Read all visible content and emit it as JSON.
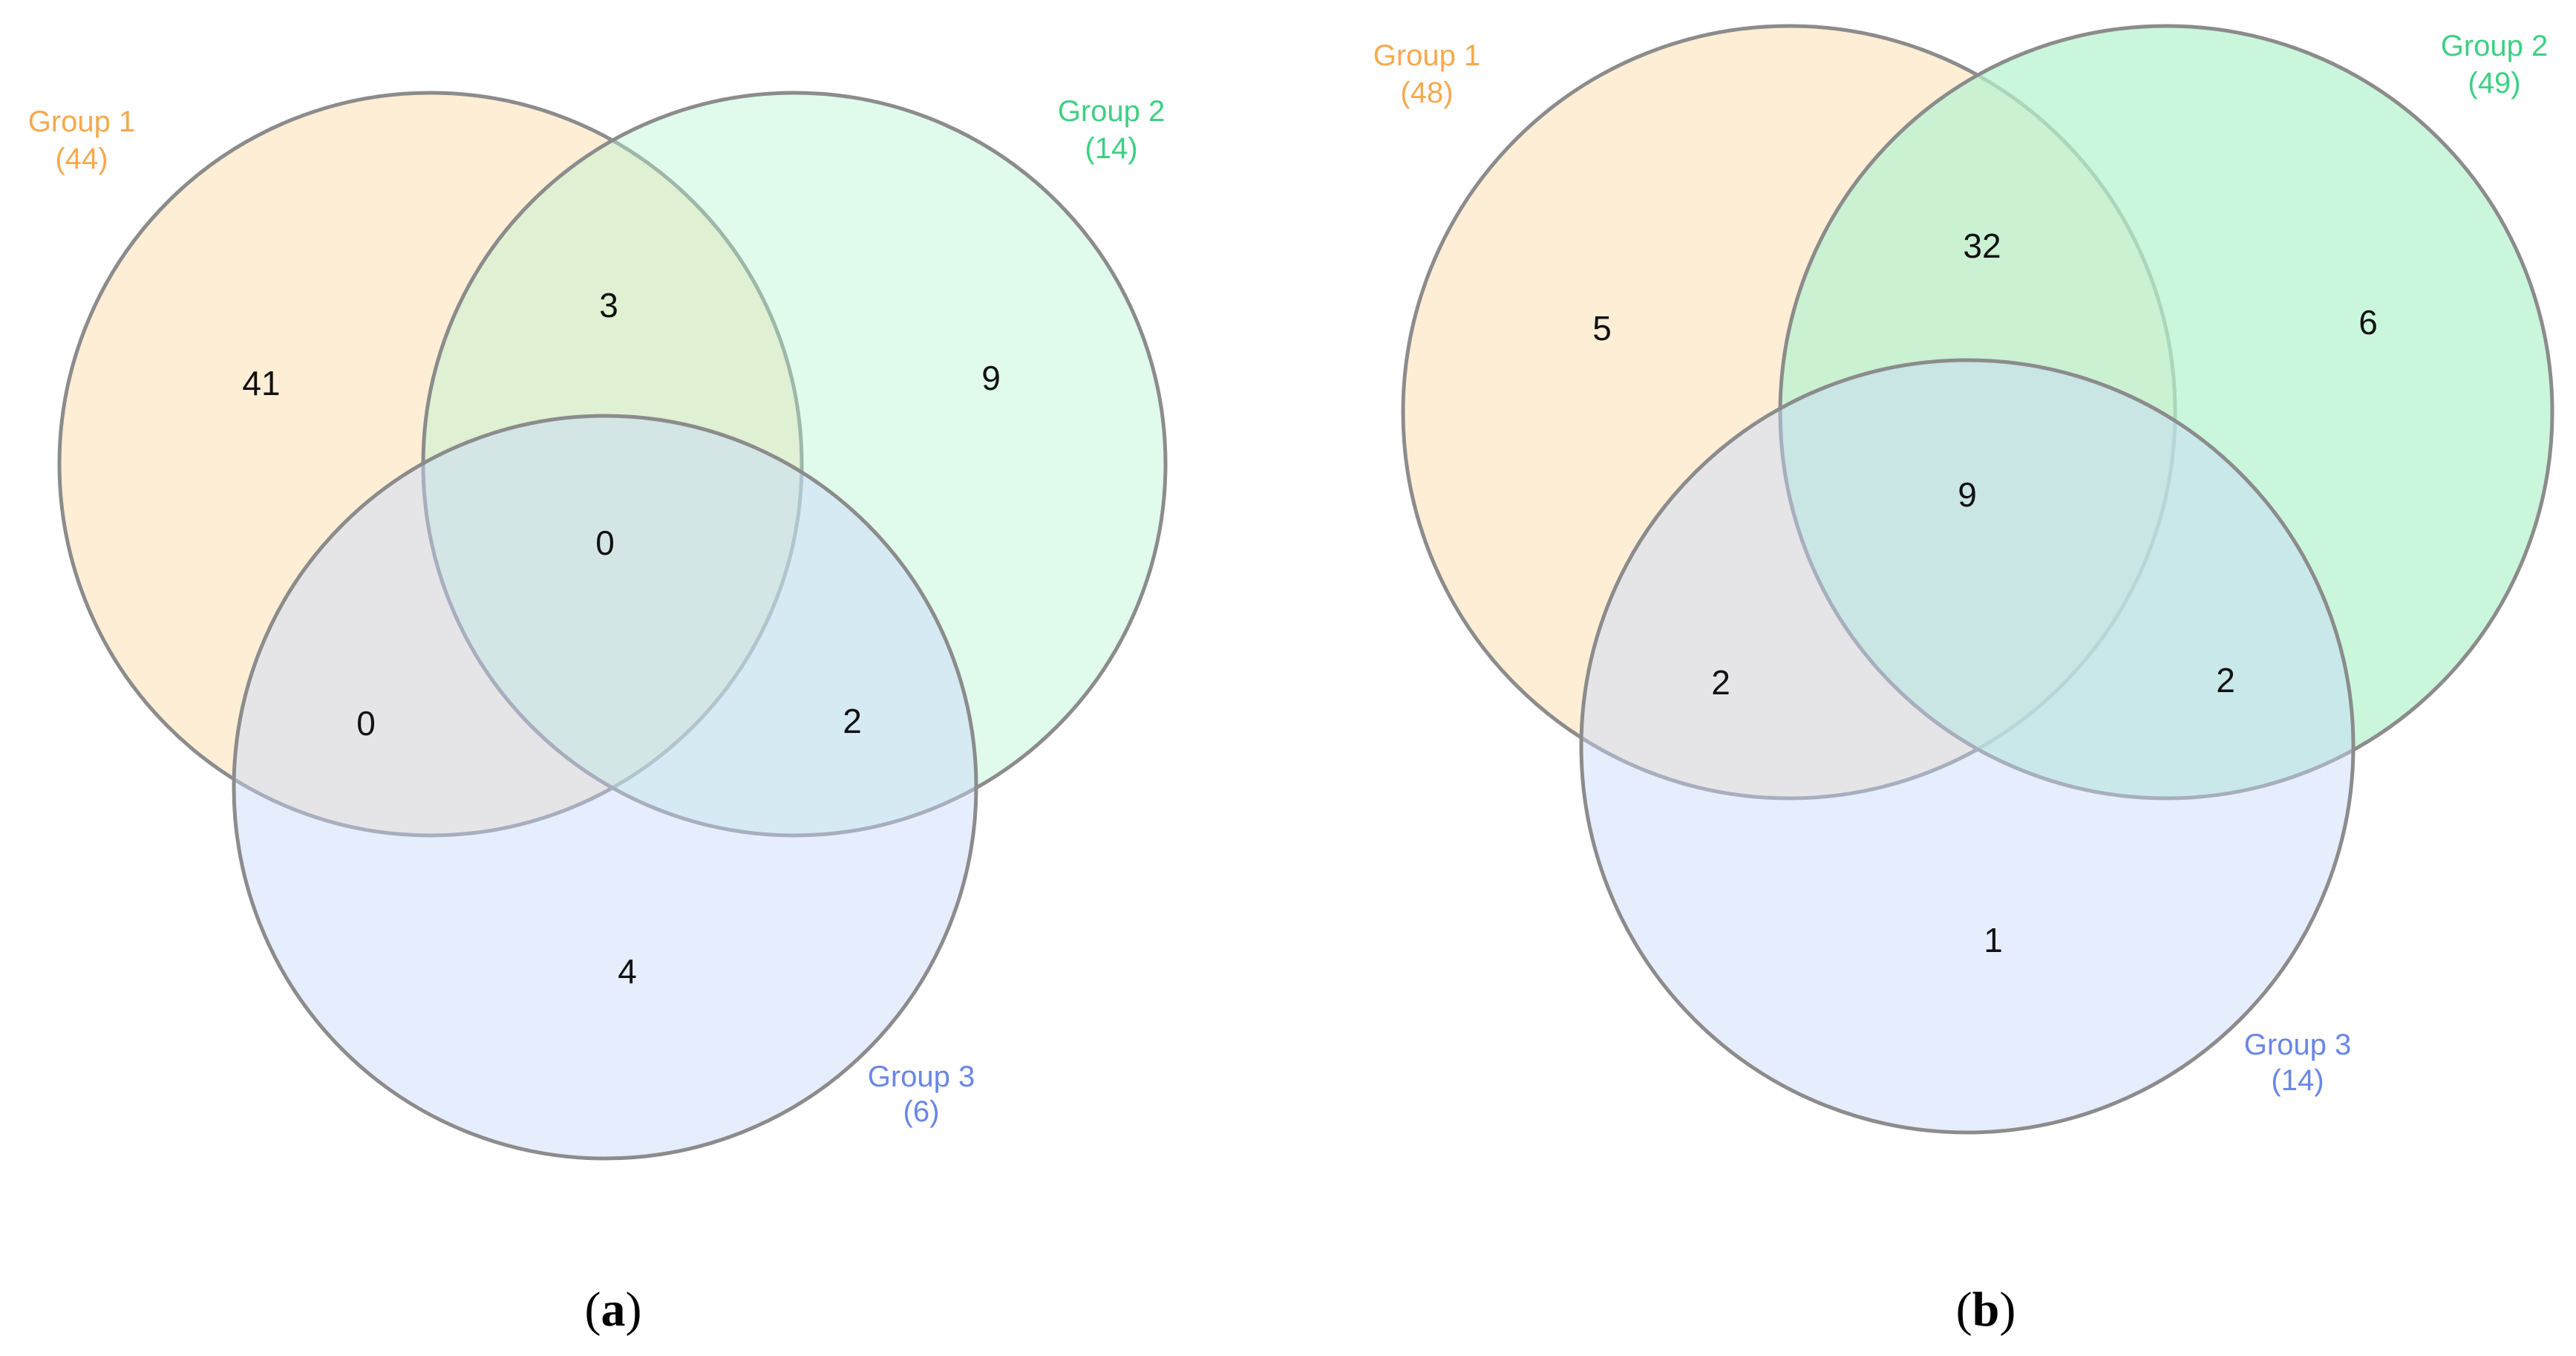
{
  "colors": {
    "group1": "#f5a94e",
    "group2": "#3ecf83",
    "group3": "#6a86e6",
    "group1_fill": "#fde3bd",
    "group2_fill": "#b6f2cf",
    "group3_fill": "#c8d6fa",
    "outline": "#8c8c8c"
  },
  "panels": [
    {
      "caption_letter": "a",
      "groups": [
        {
          "name": "Group 1",
          "total": "(44)"
        },
        {
          "name": "Group 2",
          "total": "(14)"
        },
        {
          "name": "Group 3",
          "total": "(6)"
        }
      ],
      "regions": {
        "only_1": "41",
        "only_2": "9",
        "only_3": "4",
        "g1_g2": "3",
        "g1_g3": "0",
        "g2_g3": "2",
        "all": "0"
      }
    },
    {
      "caption_letter": "b",
      "groups": [
        {
          "name": "Group 1",
          "total": "(48)"
        },
        {
          "name": "Group 2",
          "total": "(49)"
        },
        {
          "name": "Group 3",
          "total": "(14)"
        }
      ],
      "regions": {
        "only_1": "5",
        "only_2": "6",
        "only_3": "1",
        "g1_g2": "32",
        "g1_g3": "2",
        "g2_g3": "2",
        "all": "9"
      }
    }
  ]
}
